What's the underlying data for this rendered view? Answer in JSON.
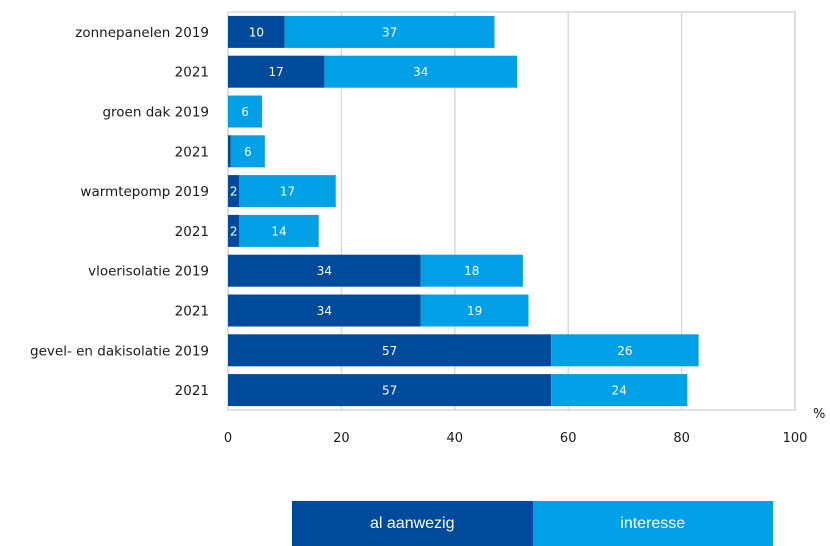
{
  "chart_data": {
    "type": "bar",
    "orientation": "horizontal",
    "stacked": true,
    "categories": [
      "zonnepanelen 2019",
      "2021",
      "groen dak 2019",
      "2021",
      "warmtepomp 2019",
      "2021",
      "vloerisolatie 2019",
      "2021",
      "gevel- en dakisolatie 2019",
      "2021"
    ],
    "series": [
      {
        "name": "al aanwezig",
        "color": "#004a9c",
        "values": [
          10,
          17,
          0,
          0.5,
          2,
          2,
          34,
          34,
          57,
          57
        ],
        "labels": [
          "10",
          "17",
          "",
          "",
          "2",
          "2",
          "34",
          "34",
          "57",
          "57"
        ]
      },
      {
        "name": "interesse",
        "color": "#00a0e6",
        "values": [
          37,
          34,
          6,
          6,
          17,
          14,
          18,
          19,
          26,
          24
        ],
        "labels": [
          "37",
          "34",
          "6",
          "6",
          "17",
          "14",
          "18",
          "19",
          "26",
          "24"
        ]
      }
    ],
    "xlim": [
      0,
      100
    ],
    "xticks": [
      "0",
      "20",
      "40",
      "60",
      "80",
      "100"
    ],
    "xunit": "%",
    "grid": true,
    "legend_position": "bottom"
  }
}
